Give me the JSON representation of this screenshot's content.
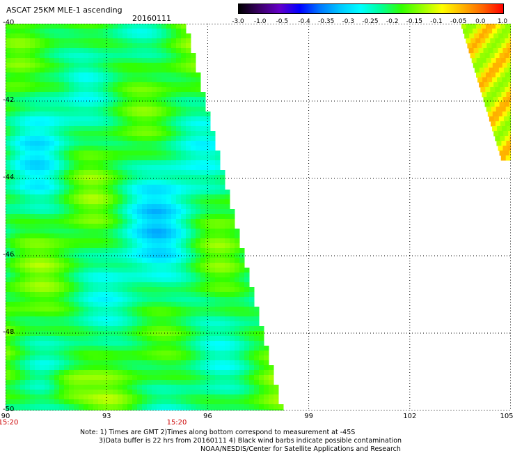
{
  "header": {
    "title": "ASCAT 25KM MLE-1 ascending",
    "date": "20160111"
  },
  "colorbar": {
    "labels": [
      "-3.0",
      "-1.0",
      "-0.5",
      "-0.4",
      "-0.35",
      "-0.3",
      "-0.25",
      "-0.2",
      "-0.15",
      "-0.1",
      "-0.05",
      "0.0",
      "1.0"
    ],
    "colors": [
      "#000000",
      "#3a0064",
      "#6400c8",
      "#0000ff",
      "#0078ff",
      "#00c8ff",
      "#00ffff",
      "#00ff96",
      "#32ff00",
      "#96ff00",
      "#ffff00",
      "#ffb400",
      "#ff6400",
      "#ff0000"
    ]
  },
  "map": {
    "lon_range": [
      90,
      105
    ],
    "lat_range": [
      -50,
      -40
    ],
    "lon_ticks": [
      "90",
      "93",
      "96",
      "99",
      "102",
      "105"
    ],
    "lat_ticks": [
      "-40",
      "-42",
      "-44",
      "-46",
      "-48",
      "-50"
    ],
    "time_labels": [
      {
        "lon": 90,
        "text": "15:20"
      },
      {
        "lon": 95,
        "text": "15:20"
      }
    ],
    "swath_left_edge_lon_range": [
      90,
      98.3
    ],
    "swath_right_fragment_lon_range": [
      103.5,
      105
    ]
  },
  "footer": {
    "note1": "Note: 1) Times are GMT 2)Times along bottom correspond to measurement at -45S",
    "note2": "3)Data buffer is 22 hrs from 20160111 4) Black wind barbs indicate possible contamination",
    "credit": "NOAA/NESDIS/Center for Satellite Applications and Research"
  }
}
